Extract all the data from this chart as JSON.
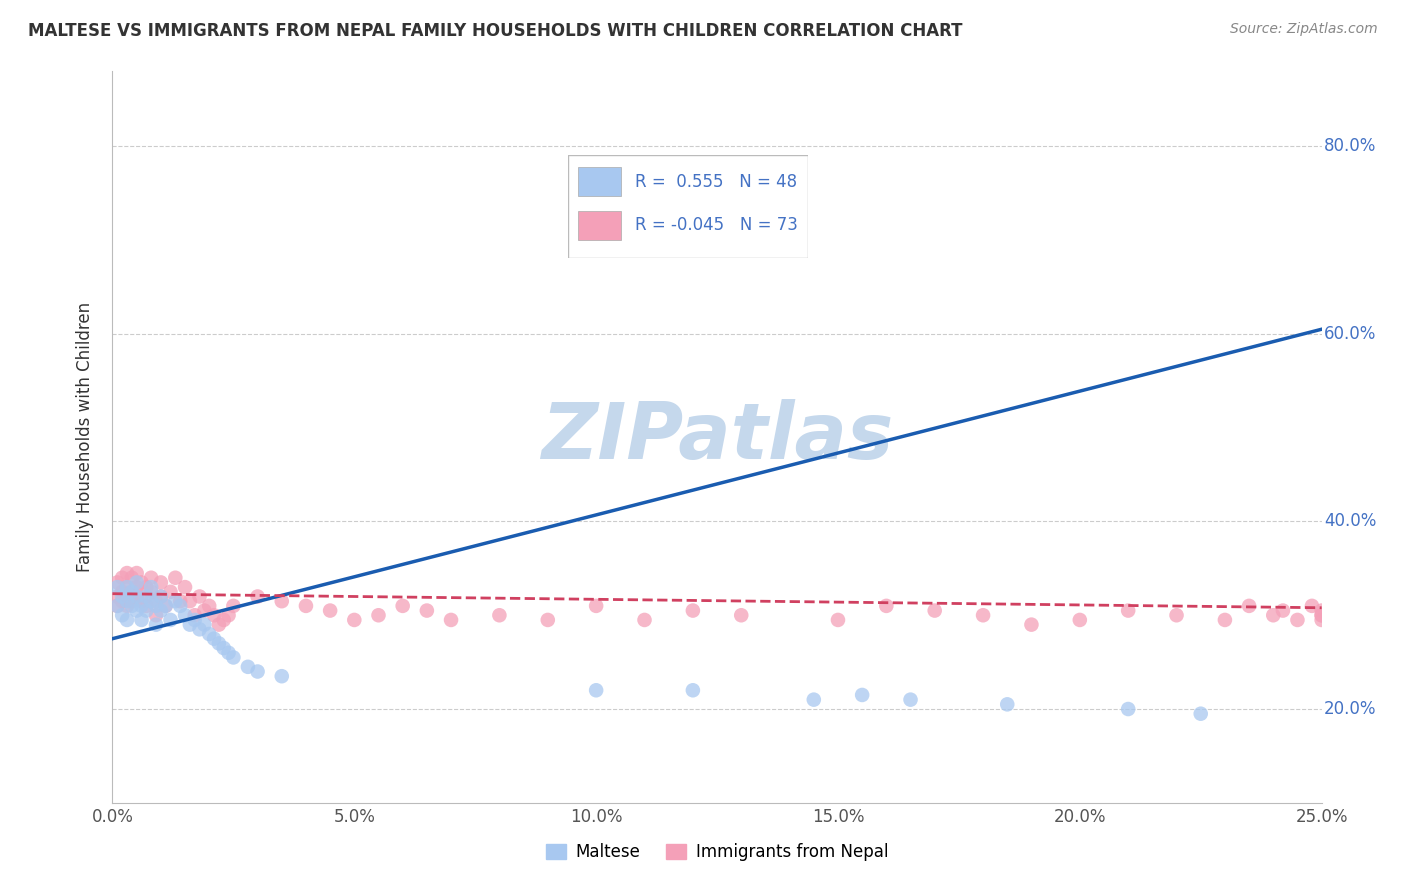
{
  "title": "MALTESE VS IMMIGRANTS FROM NEPAL FAMILY HOUSEHOLDS WITH CHILDREN CORRELATION CHART",
  "source": "Source: ZipAtlas.com",
  "ylabel": "Family Households with Children",
  "xlim": [
    0.0,
    0.25
  ],
  "ylim": [
    0.1,
    0.88
  ],
  "xtick_labels": [
    "0.0%",
    "5.0%",
    "10.0%",
    "15.0%",
    "20.0%",
    "25.0%"
  ],
  "xtick_values": [
    0.0,
    0.05,
    0.1,
    0.15,
    0.2,
    0.25
  ],
  "ytick_labels": [
    "20.0%",
    "40.0%",
    "60.0%",
    "80.0%"
  ],
  "ytick_values": [
    0.2,
    0.4,
    0.6,
    0.8
  ],
  "legend_labels": [
    "Maltese",
    "Immigrants from Nepal"
  ],
  "blue_R": 0.555,
  "blue_N": 48,
  "pink_R": -0.045,
  "pink_N": 73,
  "blue_color": "#A8C8F0",
  "pink_color": "#F4A0B8",
  "blue_line_color": "#1A5CB0",
  "pink_line_color": "#D04060",
  "watermark": "ZIPatlas",
  "watermark_color": "#C5D8EC",
  "background": "#FFFFFF",
  "grid_color": "#CCCCCC",
  "title_color": "#333333",
  "legend_R_color": "#4472C4",
  "blue_scatter_x": [
    0.001,
    0.001,
    0.002,
    0.002,
    0.003,
    0.003,
    0.003,
    0.004,
    0.004,
    0.005,
    0.005,
    0.005,
    0.006,
    0.006,
    0.007,
    0.007,
    0.008,
    0.008,
    0.009,
    0.009,
    0.01,
    0.01,
    0.011,
    0.012,
    0.013,
    0.014,
    0.015,
    0.016,
    0.017,
    0.018,
    0.019,
    0.02,
    0.021,
    0.022,
    0.023,
    0.024,
    0.025,
    0.028,
    0.03,
    0.035,
    0.1,
    0.12,
    0.145,
    0.155,
    0.165,
    0.185,
    0.21,
    0.225
  ],
  "blue_scatter_y": [
    0.31,
    0.33,
    0.3,
    0.32,
    0.295,
    0.315,
    0.33,
    0.31,
    0.325,
    0.305,
    0.32,
    0.335,
    0.31,
    0.295,
    0.32,
    0.305,
    0.315,
    0.33,
    0.31,
    0.29,
    0.305,
    0.32,
    0.31,
    0.295,
    0.315,
    0.31,
    0.3,
    0.29,
    0.295,
    0.285,
    0.29,
    0.28,
    0.275,
    0.27,
    0.265,
    0.26,
    0.255,
    0.245,
    0.24,
    0.235,
    0.22,
    0.22,
    0.21,
    0.215,
    0.21,
    0.205,
    0.2,
    0.195
  ],
  "pink_scatter_x": [
    0.001,
    0.001,
    0.001,
    0.002,
    0.002,
    0.002,
    0.003,
    0.003,
    0.003,
    0.004,
    0.004,
    0.004,
    0.005,
    0.005,
    0.005,
    0.006,
    0.006,
    0.007,
    0.007,
    0.008,
    0.008,
    0.009,
    0.009,
    0.01,
    0.01,
    0.011,
    0.012,
    0.013,
    0.014,
    0.015,
    0.016,
    0.017,
    0.018,
    0.019,
    0.02,
    0.021,
    0.022,
    0.023,
    0.024,
    0.025,
    0.03,
    0.035,
    0.04,
    0.045,
    0.05,
    0.055,
    0.06,
    0.065,
    0.07,
    0.08,
    0.09,
    0.1,
    0.11,
    0.12,
    0.13,
    0.15,
    0.16,
    0.17,
    0.18,
    0.19,
    0.2,
    0.21,
    0.22,
    0.23,
    0.235,
    0.24,
    0.242,
    0.245,
    0.248,
    0.25,
    0.25,
    0.25,
    0.25
  ],
  "pink_scatter_y": [
    0.32,
    0.335,
    0.31,
    0.325,
    0.34,
    0.315,
    0.33,
    0.345,
    0.31,
    0.325,
    0.34,
    0.315,
    0.33,
    0.345,
    0.32,
    0.335,
    0.315,
    0.33,
    0.31,
    0.325,
    0.34,
    0.315,
    0.3,
    0.32,
    0.335,
    0.31,
    0.325,
    0.34,
    0.315,
    0.33,
    0.315,
    0.3,
    0.32,
    0.305,
    0.31,
    0.3,
    0.29,
    0.295,
    0.3,
    0.31,
    0.32,
    0.315,
    0.31,
    0.305,
    0.295,
    0.3,
    0.31,
    0.305,
    0.295,
    0.3,
    0.295,
    0.31,
    0.295,
    0.305,
    0.3,
    0.295,
    0.31,
    0.305,
    0.3,
    0.29,
    0.295,
    0.305,
    0.3,
    0.295,
    0.31,
    0.3,
    0.305,
    0.295,
    0.31,
    0.3,
    0.295,
    0.305,
    0.3
  ],
  "blue_line_x0": 0.0,
  "blue_line_y0": 0.275,
  "blue_line_x1": 0.25,
  "blue_line_y1": 0.605,
  "pink_line_x0": 0.0,
  "pink_line_y0": 0.323,
  "pink_line_x1": 0.25,
  "pink_line_y1": 0.308
}
